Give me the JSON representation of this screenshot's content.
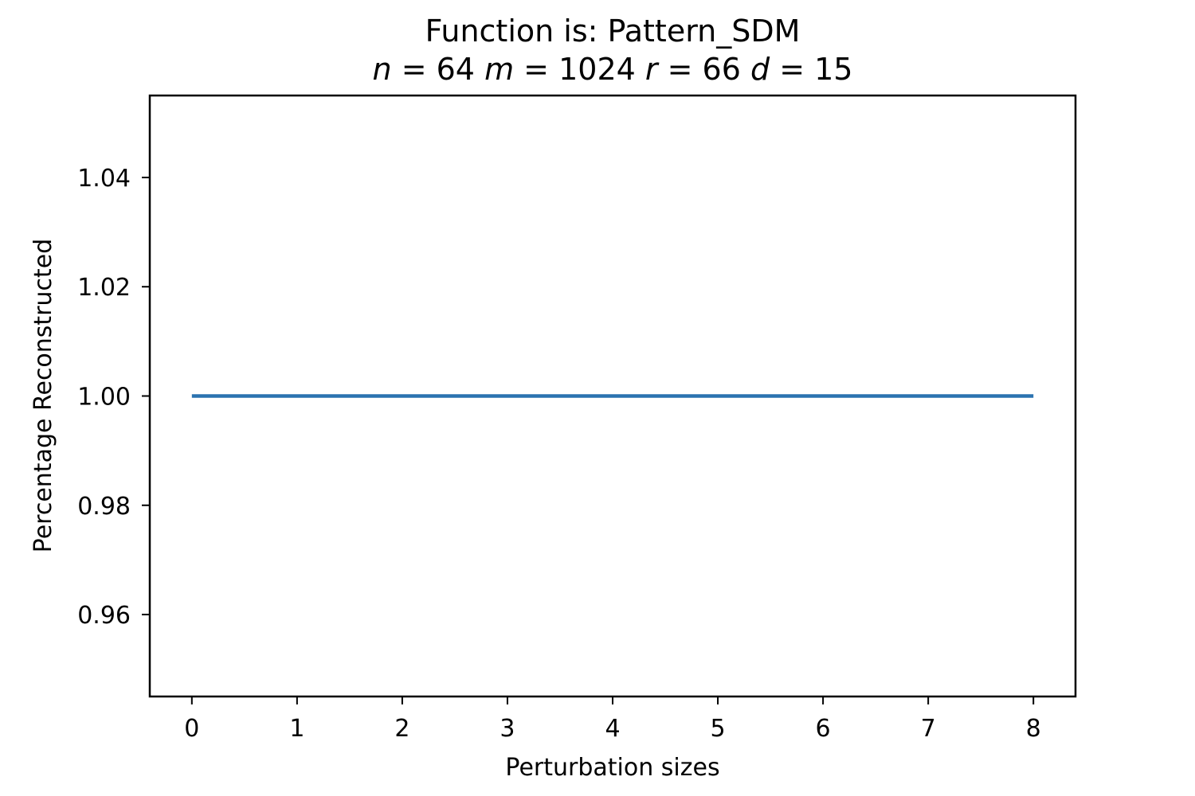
{
  "chart_data": {
    "type": "line",
    "title": "Function is: Pattern_SDM",
    "subtitle_parts": [
      {
        "var": "n",
        "value": "64"
      },
      {
        "var": "m",
        "value": "1024"
      },
      {
        "var": "r",
        "value": "66"
      },
      {
        "var": "d",
        "value": "15"
      }
    ],
    "xlabel": "Perturbation sizes",
    "ylabel": "Percentage Reconstructed",
    "x": [
      0,
      1,
      2,
      3,
      4,
      5,
      6,
      7,
      8
    ],
    "series": [
      {
        "values": [
          1.0,
          1.0,
          1.0,
          1.0,
          1.0,
          1.0,
          1.0,
          1.0,
          1.0
        ],
        "color": "#2b73b0"
      }
    ],
    "xlim": [
      -0.4,
      8.4
    ],
    "ylim": [
      0.945,
      1.055
    ],
    "xticks": [
      0,
      1,
      2,
      3,
      4,
      5,
      6,
      7,
      8
    ],
    "xtick_labels": [
      "0",
      "1",
      "2",
      "3",
      "4",
      "5",
      "6",
      "7",
      "8"
    ],
    "yticks": [
      0.96,
      0.98,
      1.0,
      1.02,
      1.04
    ],
    "ytick_labels": [
      "0.96",
      "0.98",
      "1.00",
      "1.02",
      "1.04"
    ],
    "grid": false,
    "legend": "none"
  }
}
